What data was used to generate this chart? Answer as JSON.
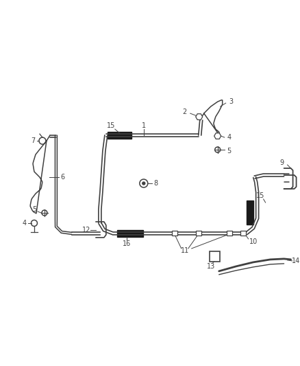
{
  "bg_color": "#ffffff",
  "line_color": "#404040",
  "label_color": "#404040",
  "fig_width": 4.38,
  "fig_height": 5.33,
  "dpi": 100,
  "parts": {
    "tube_main_color": "#404040",
    "foam_block_color": "#1a1a1a",
    "fitting_color": "#404040"
  }
}
